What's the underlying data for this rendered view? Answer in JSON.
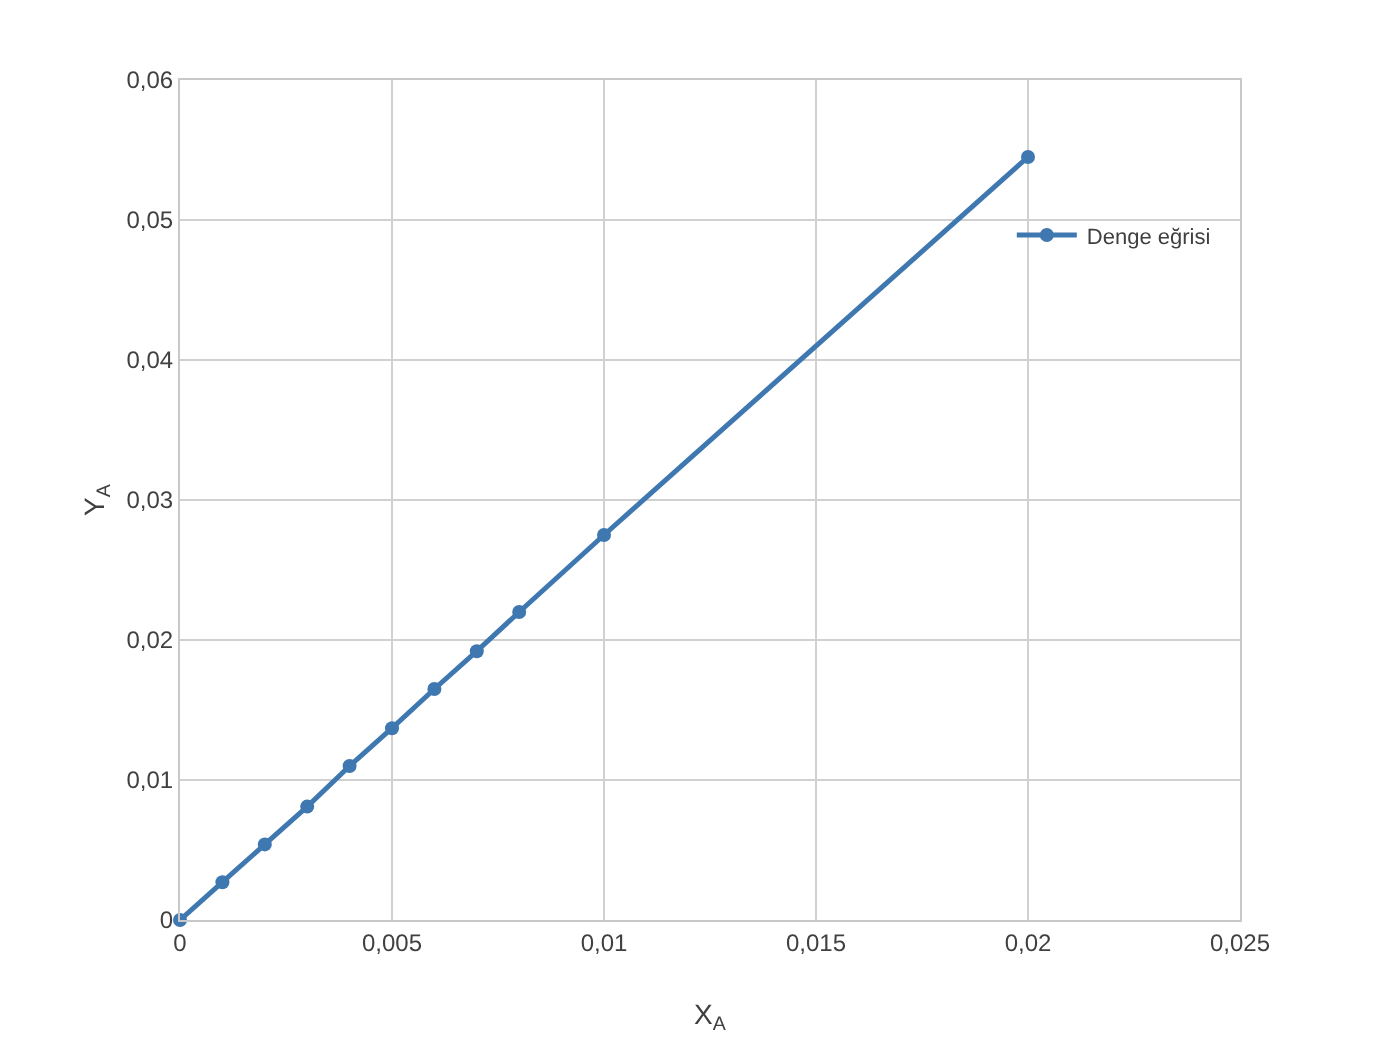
{
  "chart_data": {
    "type": "line",
    "xlabel": "X$_{A}$",
    "ylabel": "Y$_{A}$",
    "x": [
      0,
      0.001,
      0.002,
      0.003,
      0.004,
      0.005,
      0.006,
      0.007,
      0.008,
      0.01,
      0.02
    ],
    "series": [
      {
        "name": "Denge eğrisi",
        "color": "#3f78b0",
        "values": [
          0,
          0.0027,
          0.0054,
          0.0081,
          0.011,
          0.0137,
          0.0165,
          0.0192,
          0.022,
          0.0275,
          0.0545
        ]
      }
    ],
    "xlim": [
      0,
      0.025
    ],
    "ylim": [
      0,
      0.06
    ],
    "xticks": [
      {
        "value": 0,
        "label": "0"
      },
      {
        "value": 0.005,
        "label": "0,005"
      },
      {
        "value": 0.01,
        "label": "0,01"
      },
      {
        "value": 0.015,
        "label": "0,015"
      },
      {
        "value": 0.02,
        "label": "0,02"
      },
      {
        "value": 0.025,
        "label": "0,025"
      }
    ],
    "yticks": [
      {
        "value": 0,
        "label": "0"
      },
      {
        "value": 0.01,
        "label": "0,01"
      },
      {
        "value": 0.02,
        "label": "0,02"
      },
      {
        "value": 0.03,
        "label": "0,03"
      },
      {
        "value": 0.04,
        "label": "0,04"
      },
      {
        "value": 0.05,
        "label": "0,05"
      },
      {
        "value": 0.06,
        "label": "0,06"
      }
    ],
    "grid": true,
    "legend": "top right",
    "marker": "circle",
    "line_style": "solid"
  }
}
